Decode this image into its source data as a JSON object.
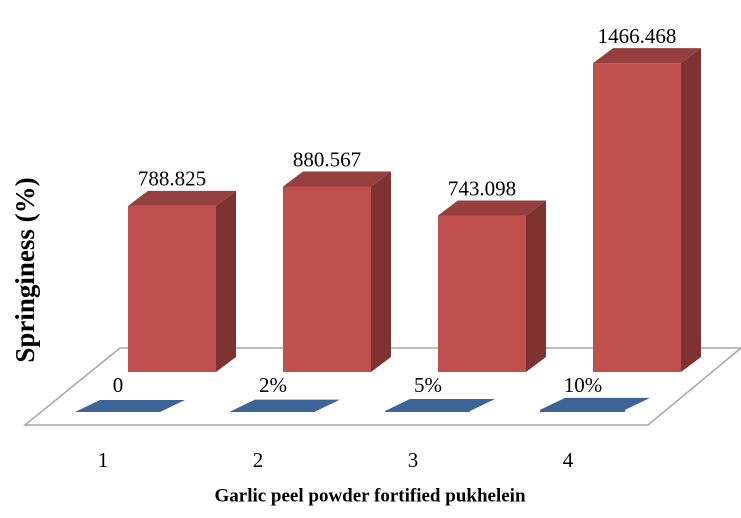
{
  "chart_data": {
    "type": "bar3d",
    "categories": [
      "1",
      "2",
      "3",
      "4"
    ],
    "xlabel": "Garlic peel powder fortified pukhelein",
    "ylabel": "Springiness (%)",
    "ylim": [
      0,
      1500
    ],
    "series": [
      {
        "color": "#c0504d",
        "values": [
          788.825,
          880.567,
          743.098,
          1466.468
        ]
      },
      {
        "color": "#3c6496",
        "values": [
          0,
          2,
          5,
          10
        ],
        "value_labels": [
          "0",
          "2%",
          "5%",
          "10%"
        ]
      }
    ]
  }
}
